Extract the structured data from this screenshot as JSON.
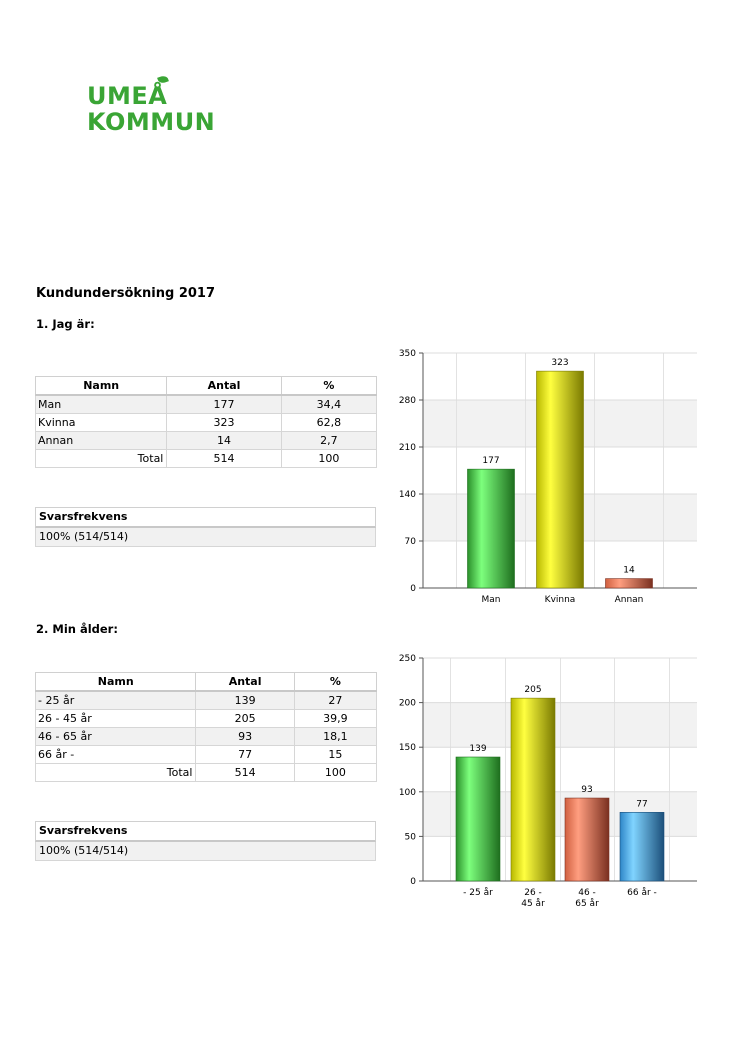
{
  "logo": {
    "line1": "UMEÅ",
    "line2": "KOMMUN"
  },
  "document_title": "Kundundersökning 2017",
  "questions": [
    {
      "title": "1. Jag är:",
      "table": {
        "headers": [
          "Namn",
          "Antal",
          "%"
        ],
        "rows": [
          [
            "Man",
            "177",
            "34,4"
          ],
          [
            "Kvinna",
            "323",
            "62,8"
          ],
          [
            "Annan",
            "14",
            "2,7"
          ]
        ],
        "total": [
          "Total",
          "514",
          "100"
        ]
      },
      "response": {
        "label": "Svarsfrekvens",
        "value": "100% (514/514)"
      }
    },
    {
      "title": "2. Min ålder:",
      "table": {
        "headers": [
          "Namn",
          "Antal",
          "%"
        ],
        "rows": [
          [
            "- 25 år",
            "139",
            "27"
          ],
          [
            "26 - 45 år",
            "205",
            "39,9"
          ],
          [
            "46 - 65 år",
            "93",
            "18,1"
          ],
          [
            "66 år -",
            "77",
            "15"
          ]
        ],
        "total": [
          "Total",
          "514",
          "100"
        ]
      },
      "response": {
        "label": "Svarsfrekvens",
        "value": "100% (514/514)"
      }
    }
  ],
  "chart_data": [
    {
      "type": "bar",
      "categories": [
        "Man",
        "Kvinna",
        "Annan"
      ],
      "category_lines": [
        [
          "Man"
        ],
        [
          "Kvinna"
        ],
        [
          "Annan"
        ]
      ],
      "values": [
        177,
        323,
        14
      ],
      "ylim": [
        0,
        350
      ],
      "yticks": [
        0,
        70,
        140,
        210,
        280,
        350
      ],
      "bar_colors": [
        "green",
        "yellow",
        "red"
      ],
      "grid": true
    },
    {
      "type": "bar",
      "categories": [
        "- 25 år",
        "26 - 45 år",
        "46 - 65 år",
        "66 år -"
      ],
      "category_lines": [
        [
          "- 25 år"
        ],
        [
          "26 -",
          "45 år"
        ],
        [
          "46 -",
          "65 år"
        ],
        [
          "66 år -"
        ]
      ],
      "values": [
        139,
        205,
        93,
        77
      ],
      "ylim": [
        0,
        250
      ],
      "yticks": [
        0,
        50,
        100,
        150,
        200,
        250
      ],
      "bar_colors": [
        "green",
        "yellow",
        "red",
        "blue"
      ],
      "grid": true
    }
  ],
  "colors": {
    "green": [
      "#2a8f2a",
      "#7dff7d",
      "#1e6e1e"
    ],
    "yellow": [
      "#b8b800",
      "#ffff40",
      "#7a7a00"
    ],
    "red": [
      "#d06040",
      "#ff9e80",
      "#7a3020"
    ],
    "blue": [
      "#2e86c8",
      "#80d4ff",
      "#1c4f7a"
    ],
    "logo_green": "#3aa535"
  }
}
